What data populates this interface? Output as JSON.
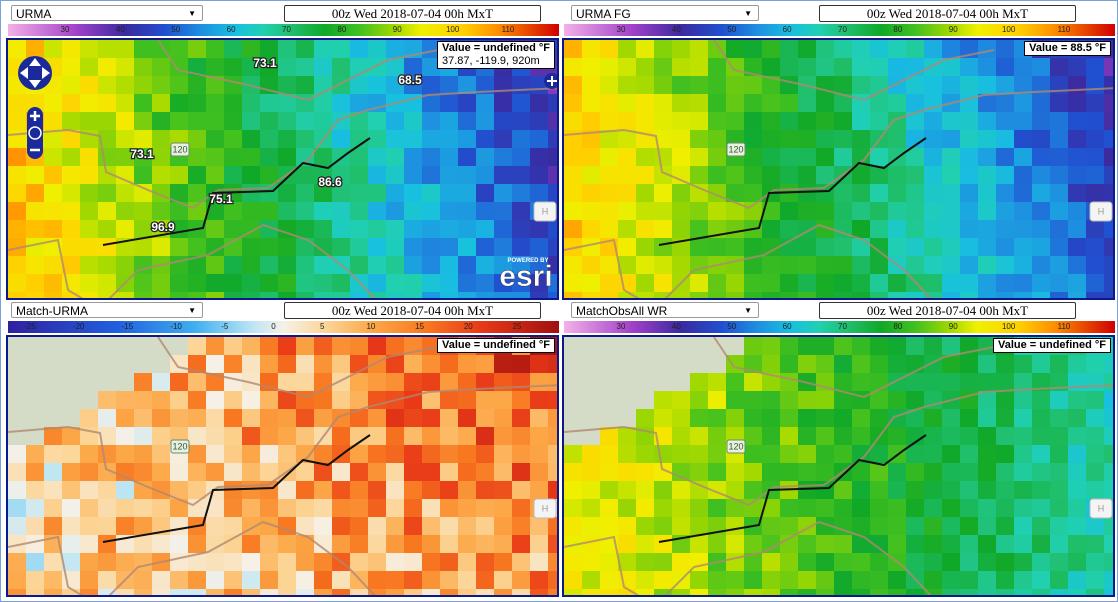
{
  "panels": [
    {
      "dropdown": "URMA",
      "time": "00z Wed 2018-07-04 00h MxT",
      "scale_labels": [
        "30",
        "40",
        "50",
        "60",
        "70",
        "80",
        "90",
        "100",
        "110"
      ],
      "value_box": "Value = undefined °F",
      "coords": "37.87, -119.9, 920m",
      "map_labels": [
        "73.1",
        "68.5",
        "73.1",
        "75.1",
        "86.6",
        "96.9"
      ],
      "road_shield": "120",
      "home_button": "H",
      "attribution_small": "POWERED BY",
      "attribution": "esri"
    },
    {
      "dropdown": "URMA FG",
      "time": "00z Wed 2018-07-04 00h MxT",
      "scale_labels": [
        "30",
        "40",
        "50",
        "60",
        "70",
        "80",
        "90",
        "100",
        "110"
      ],
      "value_box": "Value = 88.5 °F",
      "road_shield": "120",
      "home_button": "H"
    },
    {
      "dropdown": "Match-URMA",
      "time": "00z Wed 2018-07-04 00h MxT",
      "scale_labels": [
        "-25",
        "-20",
        "-15",
        "-10",
        "-5",
        "0",
        "5",
        "10",
        "15",
        "20",
        "25"
      ],
      "value_box": "Value = undefined  °F",
      "road_shield": "120",
      "home_button": "H"
    },
    {
      "dropdown": "MatchObsAll WR",
      "time": "00z Wed 2018-07-04 00h MxT",
      "scale_labels": [
        "30",
        "40",
        "50",
        "60",
        "70",
        "80",
        "90",
        "100",
        "110"
      ],
      "value_box": "Value = undefined  °F",
      "road_shield": "120",
      "home_button": "H"
    }
  ]
}
